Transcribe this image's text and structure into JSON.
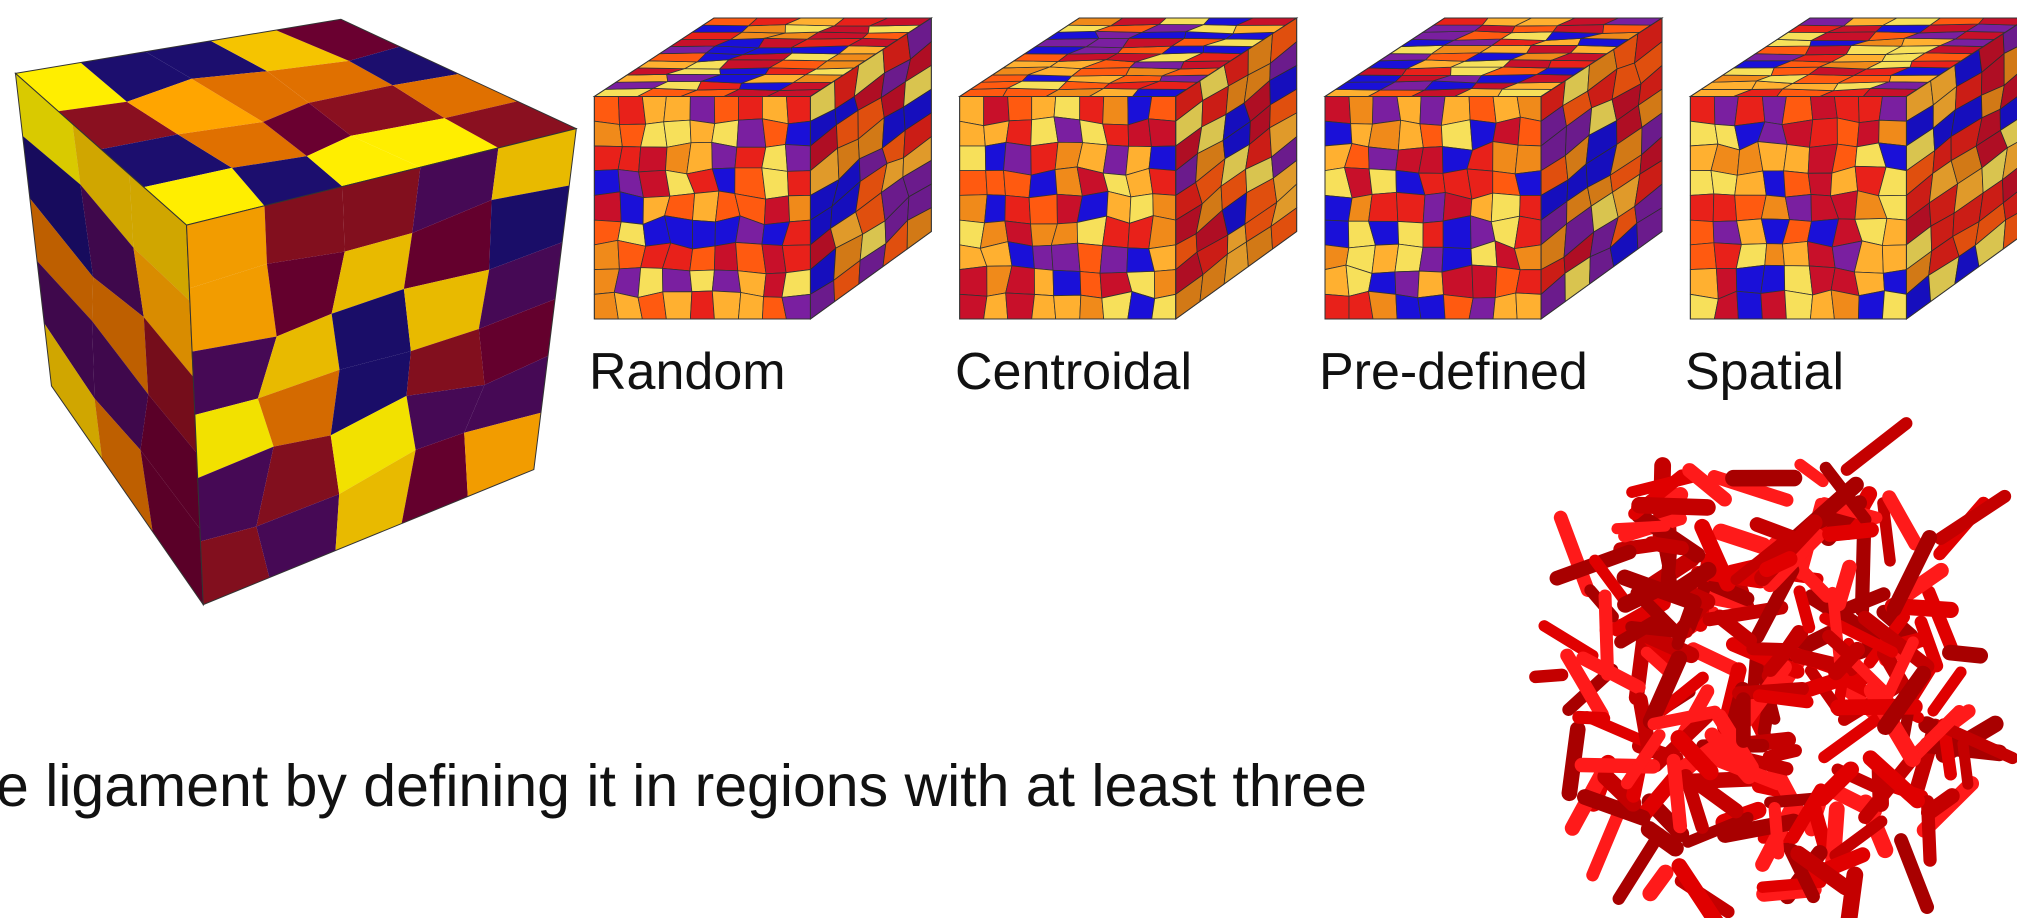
{
  "figures": {
    "labels": [
      "Random",
      "Centroidal",
      "Pre-defined",
      "Spatial"
    ]
  },
  "caption": "e ligament by defining it in regions with at least three"
}
